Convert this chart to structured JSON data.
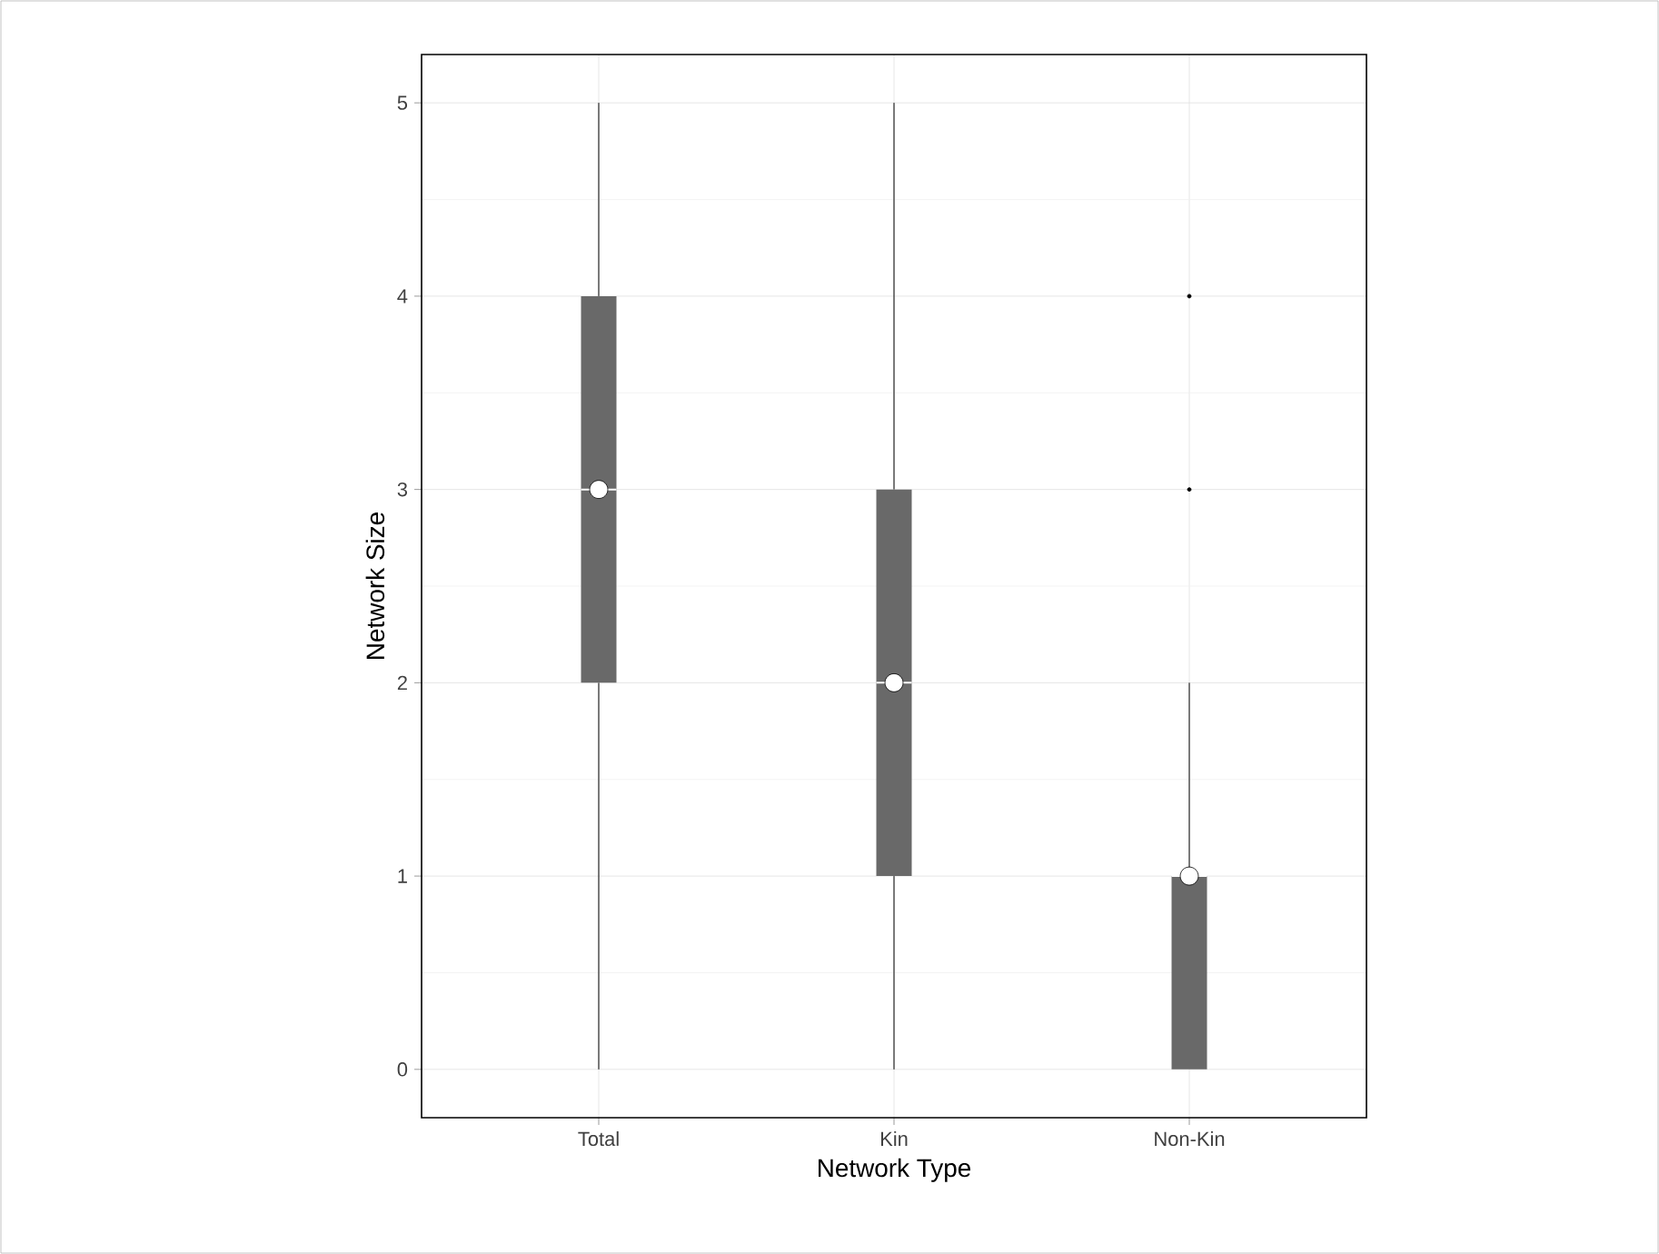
{
  "chart_data": {
    "type": "box",
    "xlabel": "Network Type",
    "ylabel": "Network Size",
    "categories": [
      "Total",
      "Kin",
      "Non-Kin"
    ],
    "boxes": [
      {
        "low": 0,
        "q1": 2,
        "median": 3,
        "q3": 4,
        "high": 5,
        "mean": 3
      },
      {
        "low": 0,
        "q1": 1,
        "median": 2,
        "q3": 3,
        "high": 5,
        "mean": 2
      },
      {
        "low": 0,
        "q1": 0,
        "median": 1,
        "q3": 1,
        "high": 2,
        "mean": 1,
        "outliers": [
          3,
          4
        ]
      }
    ],
    "color": "#696969",
    "ylim": [
      -0.25,
      5.25
    ],
    "yticks": [
      0,
      1,
      2,
      3,
      4,
      5
    ],
    "grid": true
  }
}
